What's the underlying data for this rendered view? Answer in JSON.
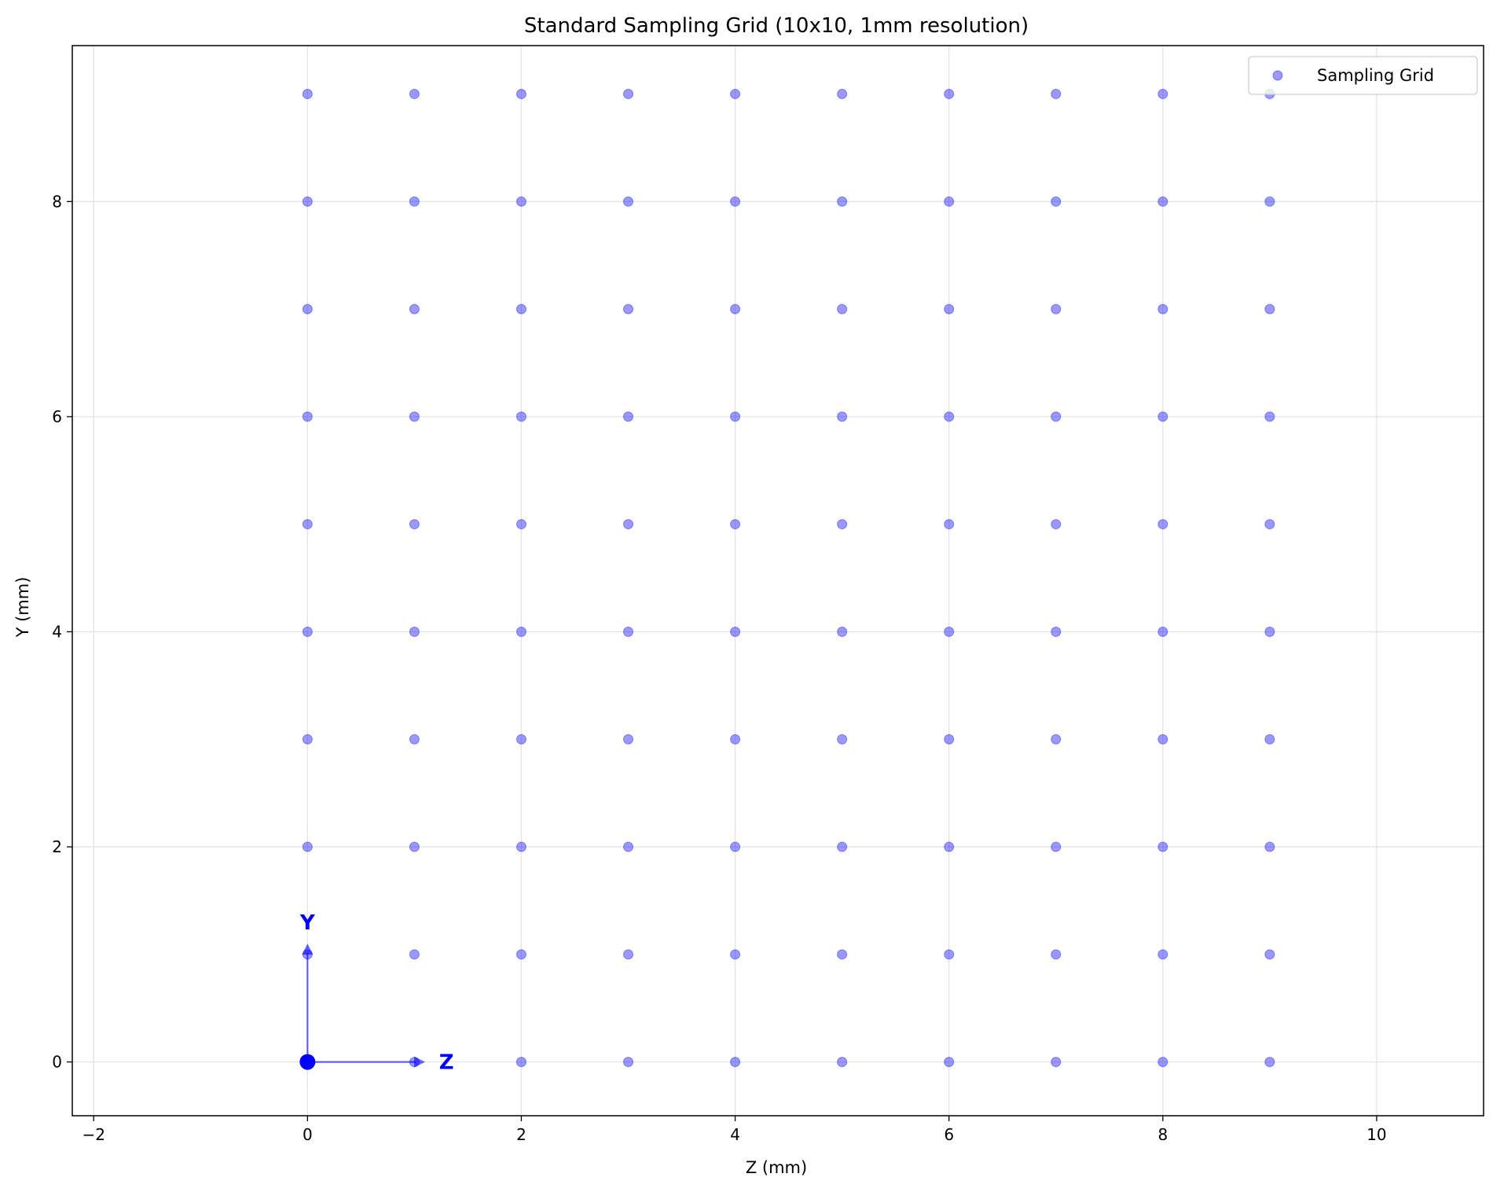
{
  "chart_data": {
    "type": "scatter",
    "title": "Standard Sampling Grid (10x10, 1mm resolution)",
    "xlabel": "Z (mm)",
    "ylabel": "Y (mm)",
    "xlim": [
      -2.2,
      11.0
    ],
    "ylim": [
      -0.5,
      9.45
    ],
    "xticks": [
      -2,
      0,
      2,
      4,
      6,
      8,
      10
    ],
    "yticks": [
      0,
      2,
      4,
      6,
      8
    ],
    "xtick_labels": [
      "−2",
      "0",
      "2",
      "4",
      "6",
      "8",
      "10"
    ],
    "ytick_labels": [
      "0",
      "2",
      "4",
      "6",
      "8"
    ],
    "grid": true,
    "legend": {
      "position": "top-right",
      "entries": [
        "Sampling Grid"
      ]
    },
    "series": [
      {
        "name": "Sampling Grid",
        "color": "#0000ff",
        "alpha": 0.4,
        "points": {
          "x_range": [
            0,
            9
          ],
          "y_range": [
            0,
            9
          ],
          "step": 1
        }
      }
    ],
    "origin": {
      "x": 0,
      "y": 0,
      "color": "#0000ff"
    },
    "axes_indicator": {
      "color": "#0000ff",
      "z_arrow": {
        "label": "Z",
        "from": [
          0,
          0
        ],
        "to": [
          1.1,
          0
        ],
        "label_at": [
          1.3,
          0
        ]
      },
      "y_arrow": {
        "label": "Y",
        "from": [
          0,
          0
        ],
        "to": [
          0,
          1.1
        ],
        "label_at": [
          0,
          1.3
        ]
      }
    }
  }
}
